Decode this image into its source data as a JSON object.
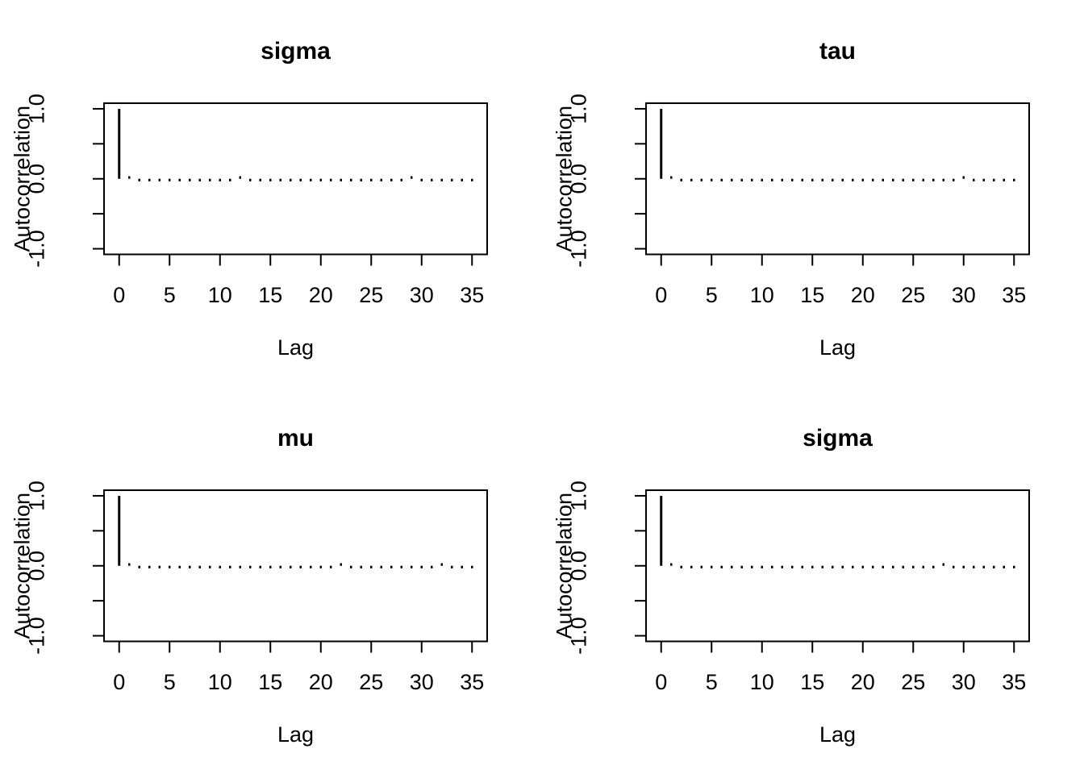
{
  "page": {
    "background_color": "#ffffff",
    "foreground_color": "#000000"
  },
  "chart_data": [
    {
      "type": "bar",
      "title": "sigma",
      "xlabel": "Lag",
      "ylabel": "Autocorrelation",
      "xlim": [
        -1.5,
        36.5
      ],
      "ylim": [
        -1.08,
        1.08
      ],
      "x_ticks": [
        0,
        5,
        10,
        15,
        20,
        25,
        30,
        35
      ],
      "x_tick_labels": [
        "0",
        "5",
        "10",
        "15",
        "20",
        "25",
        "30",
        "35"
      ],
      "y_ticks": [
        -1.0,
        -0.5,
        0.0,
        0.5,
        1.0
      ],
      "y_tick_labels": [
        "-1.0",
        "",
        "0.0",
        "",
        "1.0"
      ],
      "grid": false,
      "legend": false,
      "lags": [
        0,
        1,
        2,
        3,
        4,
        5,
        6,
        7,
        8,
        9,
        10,
        11,
        12,
        13,
        14,
        15,
        16,
        17,
        18,
        19,
        20,
        21,
        22,
        23,
        24,
        25,
        26,
        27,
        28,
        29,
        30,
        31,
        32,
        33,
        34,
        35
      ],
      "acf": [
        1.0,
        0.02,
        -0.015,
        -0.02,
        -0.01,
        -0.02,
        -0.015,
        -0.01,
        -0.02,
        -0.015,
        -0.02,
        -0.01,
        0.015,
        -0.025,
        -0.02,
        -0.03,
        -0.025,
        -0.015,
        -0.02,
        -0.01,
        -0.02,
        -0.015,
        -0.01,
        -0.02,
        -0.015,
        -0.02,
        -0.01,
        -0.015,
        -0.02,
        0.01,
        -0.02,
        -0.015,
        -0.01,
        -0.02,
        -0.015,
        -0.02
      ]
    },
    {
      "type": "bar",
      "title": "tau",
      "xlabel": "Lag",
      "ylabel": "Autocorrelation",
      "xlim": [
        -1.5,
        36.5
      ],
      "ylim": [
        -1.08,
        1.08
      ],
      "x_ticks": [
        0,
        5,
        10,
        15,
        20,
        25,
        30,
        35
      ],
      "x_tick_labels": [
        "0",
        "5",
        "10",
        "15",
        "20",
        "25",
        "30",
        "35"
      ],
      "y_ticks": [
        -1.0,
        -0.5,
        0.0,
        0.5,
        1.0
      ],
      "y_tick_labels": [
        "-1.0",
        "",
        "0.0",
        "",
        "1.0"
      ],
      "grid": false,
      "legend": false,
      "lags": [
        0,
        1,
        2,
        3,
        4,
        5,
        6,
        7,
        8,
        9,
        10,
        11,
        12,
        13,
        14,
        15,
        16,
        17,
        18,
        19,
        20,
        21,
        22,
        23,
        24,
        25,
        26,
        27,
        28,
        29,
        30,
        31,
        32,
        33,
        34,
        35
      ],
      "acf": [
        1.0,
        0.015,
        -0.02,
        -0.015,
        -0.02,
        -0.01,
        -0.02,
        -0.015,
        -0.01,
        -0.02,
        -0.015,
        -0.02,
        -0.01,
        -0.035,
        -0.02,
        -0.015,
        -0.025,
        -0.02,
        -0.01,
        -0.02,
        -0.015,
        -0.02,
        -0.01,
        -0.015,
        -0.02,
        -0.01,
        -0.02,
        -0.015,
        -0.02,
        -0.01,
        0.015,
        -0.02,
        -0.015,
        -0.01,
        -0.02,
        -0.015
      ]
    },
    {
      "type": "bar",
      "title": "mu",
      "xlabel": "Lag",
      "ylabel": "Autocorrelation",
      "xlim": [
        -1.5,
        36.5
      ],
      "ylim": [
        -1.08,
        1.08
      ],
      "x_ticks": [
        0,
        5,
        10,
        15,
        20,
        25,
        30,
        35
      ],
      "x_tick_labels": [
        "0",
        "5",
        "10",
        "15",
        "20",
        "25",
        "30",
        "35"
      ],
      "y_ticks": [
        -1.0,
        -0.5,
        0.0,
        0.5,
        1.0
      ],
      "y_tick_labels": [
        "-1.0",
        "",
        "0.0",
        "",
        "1.0"
      ],
      "grid": false,
      "legend": false,
      "lags": [
        0,
        1,
        2,
        3,
        4,
        5,
        6,
        7,
        8,
        9,
        10,
        11,
        12,
        13,
        14,
        15,
        16,
        17,
        18,
        19,
        20,
        21,
        22,
        23,
        24,
        25,
        26,
        27,
        28,
        29,
        30,
        31,
        32,
        33,
        34,
        35
      ],
      "acf": [
        1.0,
        0.02,
        -0.015,
        -0.02,
        -0.01,
        -0.015,
        -0.02,
        -0.01,
        -0.02,
        -0.015,
        -0.01,
        -0.02,
        -0.015,
        -0.02,
        -0.025,
        -0.01,
        -0.02,
        -0.03,
        -0.025,
        -0.015,
        -0.02,
        -0.01,
        0.01,
        -0.02,
        -0.015,
        -0.02,
        -0.01,
        -0.015,
        -0.02,
        -0.01,
        -0.02,
        -0.015,
        0.01,
        -0.02,
        -0.015,
        -0.02
      ]
    },
    {
      "type": "bar",
      "title": "sigma",
      "xlabel": "Lag",
      "ylabel": "Autocorrelation",
      "xlim": [
        -1.5,
        36.5
      ],
      "ylim": [
        -1.08,
        1.08
      ],
      "x_ticks": [
        0,
        5,
        10,
        15,
        20,
        25,
        30,
        35
      ],
      "x_tick_labels": [
        "0",
        "5",
        "10",
        "15",
        "20",
        "25",
        "30",
        "35"
      ],
      "y_ticks": [
        -1.0,
        -0.5,
        0.0,
        0.5,
        1.0
      ],
      "y_tick_labels": [
        "-1.0",
        "",
        "0.0",
        "",
        "1.0"
      ],
      "grid": false,
      "legend": false,
      "lags": [
        0,
        1,
        2,
        3,
        4,
        5,
        6,
        7,
        8,
        9,
        10,
        11,
        12,
        13,
        14,
        15,
        16,
        17,
        18,
        19,
        20,
        21,
        22,
        23,
        24,
        25,
        26,
        27,
        28,
        29,
        30,
        31,
        32,
        33,
        34,
        35
      ],
      "acf": [
        1.0,
        0.02,
        -0.02,
        -0.015,
        -0.01,
        -0.02,
        -0.015,
        -0.02,
        -0.01,
        -0.015,
        -0.02,
        -0.01,
        -0.03,
        -0.015,
        -0.02,
        -0.01,
        -0.02,
        -0.015,
        -0.02,
        -0.025,
        -0.01,
        -0.02,
        -0.015,
        -0.01,
        -0.03,
        -0.02,
        -0.015,
        -0.02,
        0.015,
        -0.02,
        -0.01,
        -0.015,
        -0.02,
        -0.01,
        -0.02,
        -0.015
      ]
    }
  ]
}
